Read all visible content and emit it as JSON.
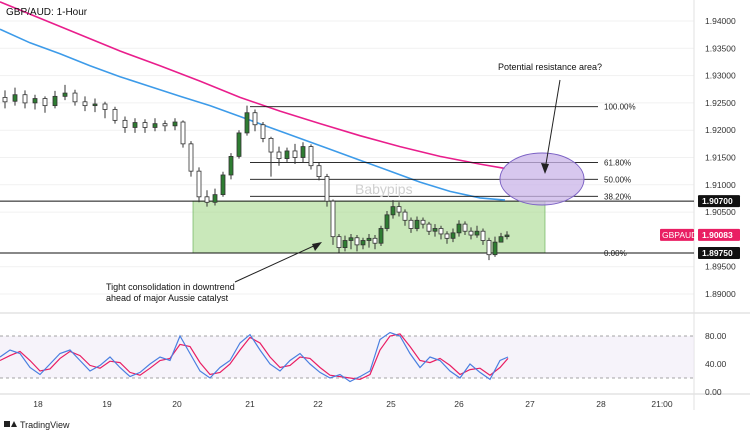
{
  "chart_data": {
    "type": "candlestick",
    "title": "GBP/AUD: 1-Hour",
    "watermark": "Babypips",
    "branding": "TradingView",
    "y_axis": {
      "ylim": [
        1.8895,
        1.9435
      ],
      "ticks": [
        "1.94000",
        "1.93500",
        "1.93000",
        "1.92500",
        "1.92000",
        "1.91500",
        "1.91000",
        "1.90500",
        "1.89500",
        "1.89000"
      ]
    },
    "x_axis": {
      "tick_labels": [
        "18",
        "19",
        "20",
        "21",
        "22",
        "25",
        "26",
        "27",
        "28",
        "21:00"
      ]
    },
    "price_tags": [
      {
        "label": "",
        "value": "1.90700",
        "price": 1.907,
        "color": "#111111"
      },
      {
        "label": "GBPAUD",
        "value": "1.90083",
        "price": 1.90083,
        "color": "#e91e63"
      },
      {
        "label": "",
        "value": "1.89750",
        "price": 1.8975,
        "color": "#111111"
      }
    ],
    "horizontal_lines": [
      {
        "price": 1.907,
        "color": "#111111"
      },
      {
        "price": 1.8975,
        "color": "#111111"
      }
    ],
    "consolidation_zone": {
      "top": 1.907,
      "bottom": 1.8975,
      "color": "#a5d98c"
    },
    "fibonacci": [
      {
        "label": "100.00%",
        "price": 1.9243
      },
      {
        "label": "61.80%",
        "price": 1.9141
      },
      {
        "label": "50.00%",
        "price": 1.911
      },
      {
        "label": "38.20%",
        "price": 1.9079
      },
      {
        "label": "0.00%",
        "price": 1.8975
      }
    ],
    "moving_averages": [
      {
        "color": "#e91e8c",
        "points": [
          [
            0,
            1.9435
          ],
          [
            40,
            1.9405
          ],
          [
            80,
            1.9375
          ],
          [
            120,
            1.9345
          ],
          [
            160,
            1.9318
          ],
          [
            200,
            1.929
          ],
          [
            240,
            1.926
          ],
          [
            280,
            1.9235
          ],
          [
            320,
            1.9212
          ],
          [
            360,
            1.919
          ],
          [
            400,
            1.917
          ],
          [
            440,
            1.9152
          ],
          [
            480,
            1.9138
          ],
          [
            505,
            1.913
          ]
        ]
      },
      {
        "color": "#3d9be9",
        "points": [
          [
            0,
            1.9385
          ],
          [
            30,
            1.936
          ],
          [
            60,
            1.934
          ],
          [
            90,
            1.9318
          ],
          [
            120,
            1.9298
          ],
          [
            150,
            1.928
          ],
          [
            180,
            1.9262
          ],
          [
            210,
            1.9245
          ],
          [
            240,
            1.9225
          ],
          [
            270,
            1.9205
          ],
          [
            300,
            1.9185
          ],
          [
            330,
            1.9165
          ],
          [
            360,
            1.9145
          ],
          [
            390,
            1.9125
          ],
          [
            420,
            1.9105
          ],
          [
            450,
            1.9088
          ],
          [
            480,
            1.9076
          ],
          [
            505,
            1.9072
          ]
        ]
      }
    ],
    "candles": [
      [
        5,
        1.926,
        1.9252,
        1.9273,
        1.924
      ],
      [
        15,
        1.9253,
        1.9265,
        1.9278,
        1.9245
      ],
      [
        25,
        1.9265,
        1.925,
        1.9273,
        1.924
      ],
      [
        35,
        1.925,
        1.9258,
        1.9265,
        1.9238
      ],
      [
        45,
        1.9258,
        1.9245,
        1.9262,
        1.9232
      ],
      [
        55,
        1.9245,
        1.9262,
        1.9272,
        1.924
      ],
      [
        65,
        1.9262,
        1.9268,
        1.9283,
        1.9255
      ],
      [
        75,
        1.9268,
        1.9252,
        1.9274,
        1.9245
      ],
      [
        85,
        1.9252,
        1.9245,
        1.9262,
        1.9235
      ],
      [
        95,
        1.9245,
        1.9248,
        1.9258,
        1.9233
      ],
      [
        105,
        1.9248,
        1.9238,
        1.9252,
        1.9222
      ],
      [
        115,
        1.9238,
        1.9218,
        1.9243,
        1.9212
      ],
      [
        125,
        1.9218,
        1.9205,
        1.9225,
        1.9195
      ],
      [
        135,
        1.9205,
        1.9214,
        1.9222,
        1.9195
      ],
      [
        145,
        1.9214,
        1.9205,
        1.922,
        1.9195
      ],
      [
        155,
        1.9205,
        1.9212,
        1.9222,
        1.9198
      ],
      [
        165,
        1.9212,
        1.9208,
        1.9218,
        1.9198
      ],
      [
        175,
        1.9208,
        1.9215,
        1.9222,
        1.92
      ],
      [
        183,
        1.9215,
        1.9175,
        1.9218,
        1.9168
      ],
      [
        191,
        1.9175,
        1.9125,
        1.918,
        1.9115
      ],
      [
        199,
        1.9125,
        1.9078,
        1.9132,
        1.9068
      ],
      [
        207,
        1.9078,
        1.9068,
        1.909,
        1.906
      ],
      [
        215,
        1.9068,
        1.9082,
        1.9093,
        1.9062
      ],
      [
        223,
        1.9082,
        1.9118,
        1.9124,
        1.9078
      ],
      [
        231,
        1.9118,
        1.9152,
        1.9158,
        1.911
      ],
      [
        239,
        1.9152,
        1.9195,
        1.92,
        1.9148
      ],
      [
        247,
        1.9195,
        1.9232,
        1.9245,
        1.919
      ],
      [
        255,
        1.9232,
        1.921,
        1.9238,
        1.9198
      ],
      [
        263,
        1.921,
        1.9185,
        1.9215,
        1.9178
      ],
      [
        271,
        1.9185,
        1.916,
        1.9188,
        1.9115
      ],
      [
        279,
        1.916,
        1.9148,
        1.917,
        1.9135
      ],
      [
        287,
        1.9148,
        1.9162,
        1.9168,
        1.9142
      ],
      [
        295,
        1.9162,
        1.915,
        1.9175,
        1.9138
      ],
      [
        303,
        1.915,
        1.917,
        1.9178,
        1.914
      ],
      [
        311,
        1.917,
        1.9135,
        1.9174,
        1.9128
      ],
      [
        319,
        1.9135,
        1.9115,
        1.9141,
        1.9108
      ],
      [
        327,
        1.9115,
        1.907,
        1.912,
        1.906
      ],
      [
        333,
        1.907,
        1.9005,
        1.9073,
        1.899
      ],
      [
        339,
        1.9005,
        1.8985,
        1.901,
        1.8976
      ],
      [
        345,
        1.8985,
        1.8998,
        1.9007,
        1.8978
      ],
      [
        351,
        1.8998,
        1.9003,
        1.901,
        1.8982
      ],
      [
        357,
        1.9003,
        1.899,
        1.9008,
        1.8978
      ],
      [
        363,
        1.899,
        1.8998,
        1.9003,
        1.8982
      ],
      [
        369,
        1.8998,
        1.9002,
        1.901,
        1.8985
      ],
      [
        375,
        1.9002,
        1.8993,
        1.9008,
        1.8982
      ],
      [
        381,
        1.8993,
        1.902,
        1.9025,
        1.8988
      ],
      [
        387,
        1.902,
        1.9045,
        1.9052,
        1.9015
      ],
      [
        393,
        1.9045,
        1.906,
        1.9072,
        1.9038
      ],
      [
        399,
        1.906,
        1.905,
        1.9068,
        1.9042
      ],
      [
        405,
        1.905,
        1.9035,
        1.9055,
        1.9025
      ],
      [
        411,
        1.9035,
        1.902,
        1.904,
        1.9012
      ],
      [
        417,
        1.902,
        1.9035,
        1.9042,
        1.9015
      ],
      [
        423,
        1.9035,
        1.9028,
        1.904,
        1.902
      ],
      [
        429,
        1.9028,
        1.9015,
        1.9032,
        1.9008
      ],
      [
        435,
        1.9015,
        1.902,
        1.9028,
        1.9005
      ],
      [
        441,
        1.902,
        1.901,
        1.9025,
        1.9
      ],
      [
        447,
        1.901,
        1.9002,
        1.9015,
        1.8992
      ],
      [
        453,
        1.9002,
        1.9012,
        1.902,
        1.8995
      ],
      [
        459,
        1.9012,
        1.9028,
        1.9035,
        1.9005
      ],
      [
        465,
        1.9028,
        1.9015,
        1.9033,
        1.9008
      ],
      [
        471,
        1.9015,
        1.9008,
        1.9022,
        1.9
      ],
      [
        477,
        1.9008,
        1.9015,
        1.9025,
        1.9003
      ],
      [
        483,
        1.9015,
        1.8998,
        1.902,
        1.899
      ],
      [
        489,
        1.8998,
        1.8972,
        1.9003,
        1.8962
      ],
      [
        495,
        1.8972,
        1.8995,
        1.9005,
        1.8968
      ],
      [
        501,
        1.8995,
        1.9005,
        1.9012,
        1.8995
      ],
      [
        507,
        1.9005,
        1.9008,
        1.9015,
        1.9
      ]
    ],
    "annotations": [
      {
        "text": "Potential resistance area?"
      },
      {
        "text": "Tight consolidation in downtrend ahead of major Aussie catalyst"
      }
    ],
    "stochastic": {
      "ylim": [
        0,
        100
      ],
      "ticks": [
        "80.00",
        "40.00",
        "0.00"
      ],
      "overbought": 80,
      "oversold": 20,
      "k_color": "#4a7fe0",
      "d_color": "#e91e63",
      "k": [
        [
          0,
          50
        ],
        [
          10,
          60
        ],
        [
          20,
          55
        ],
        [
          30,
          35
        ],
        [
          40,
          25
        ],
        [
          50,
          40
        ],
        [
          60,
          55
        ],
        [
          70,
          60
        ],
        [
          80,
          45
        ],
        [
          90,
          30
        ],
        [
          100,
          38
        ],
        [
          110,
          50
        ],
        [
          120,
          35
        ],
        [
          130,
          22
        ],
        [
          140,
          28
        ],
        [
          150,
          40
        ],
        [
          160,
          50
        ],
        [
          170,
          45
        ],
        [
          180,
          80
        ],
        [
          190,
          55
        ],
        [
          200,
          30
        ],
        [
          210,
          20
        ],
        [
          220,
          35
        ],
        [
          230,
          45
        ],
        [
          240,
          70
        ],
        [
          250,
          82
        ],
        [
          260,
          60
        ],
        [
          270,
          40
        ],
        [
          280,
          30
        ],
        [
          290,
          45
        ],
        [
          300,
          55
        ],
        [
          310,
          40
        ],
        [
          320,
          28
        ],
        [
          330,
          20
        ],
        [
          340,
          25
        ],
        [
          350,
          15
        ],
        [
          360,
          22
        ],
        [
          370,
          30
        ],
        [
          380,
          75
        ],
        [
          390,
          85
        ],
        [
          400,
          80
        ],
        [
          410,
          55
        ],
        [
          420,
          35
        ],
        [
          430,
          50
        ],
        [
          440,
          45
        ],
        [
          450,
          30
        ],
        [
          460,
          20
        ],
        [
          470,
          40
        ],
        [
          480,
          28
        ],
        [
          490,
          18
        ],
        [
          500,
          45
        ],
        [
          508,
          50
        ]
      ],
      "d": [
        [
          0,
          45
        ],
        [
          10,
          52
        ],
        [
          20,
          58
        ],
        [
          30,
          45
        ],
        [
          40,
          30
        ],
        [
          50,
          33
        ],
        [
          60,
          48
        ],
        [
          70,
          58
        ],
        [
          80,
          52
        ],
        [
          90,
          38
        ],
        [
          100,
          34
        ],
        [
          110,
          44
        ],
        [
          120,
          42
        ],
        [
          130,
          28
        ],
        [
          140,
          24
        ],
        [
          150,
          34
        ],
        [
          160,
          45
        ],
        [
          170,
          48
        ],
        [
          180,
          68
        ],
        [
          190,
          65
        ],
        [
          200,
          42
        ],
        [
          210,
          25
        ],
        [
          220,
          28
        ],
        [
          230,
          40
        ],
        [
          240,
          60
        ],
        [
          250,
          78
        ],
        [
          260,
          70
        ],
        [
          270,
          50
        ],
        [
          280,
          35
        ],
        [
          290,
          38
        ],
        [
          300,
          50
        ],
        [
          310,
          48
        ],
        [
          320,
          35
        ],
        [
          330,
          24
        ],
        [
          340,
          22
        ],
        [
          350,
          20
        ],
        [
          360,
          18
        ],
        [
          370,
          25
        ],
        [
          380,
          60
        ],
        [
          390,
          80
        ],
        [
          400,
          83
        ],
        [
          410,
          65
        ],
        [
          420,
          45
        ],
        [
          430,
          42
        ],
        [
          440,
          48
        ],
        [
          450,
          38
        ],
        [
          460,
          25
        ],
        [
          470,
          32
        ],
        [
          480,
          34
        ],
        [
          490,
          24
        ],
        [
          500,
          35
        ],
        [
          508,
          48
        ]
      ]
    }
  }
}
